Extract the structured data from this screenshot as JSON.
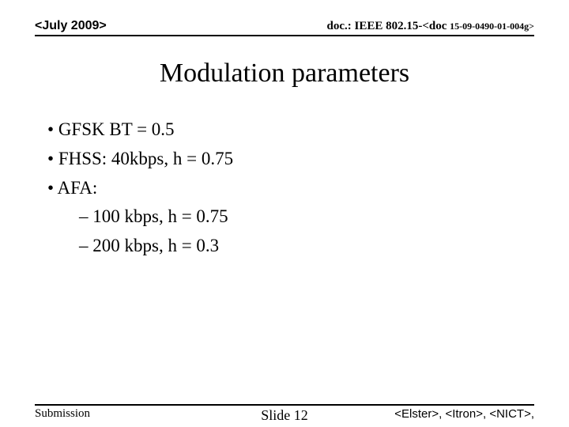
{
  "header": {
    "left": "<July 2009>",
    "right_prefix": "doc.: IEEE 802.15-<doc",
    "right_suffix": "15-09-0490-01-004g>"
  },
  "title": "Modulation parameters",
  "bullets": [
    "GFSK BT = 0.5",
    "FHSS: 40kbps, h = 0.75",
    "AFA:"
  ],
  "sub_bullets": [
    "100 kbps, h = 0.75",
    "200 kbps, h = 0.3"
  ],
  "footer": {
    "left": "Submission",
    "center": "Slide 12",
    "right": "<Elster>, <Itron>, <NICT>,"
  },
  "colors": {
    "background": "#ffffff",
    "text": "#000000",
    "rule": "#000000"
  }
}
